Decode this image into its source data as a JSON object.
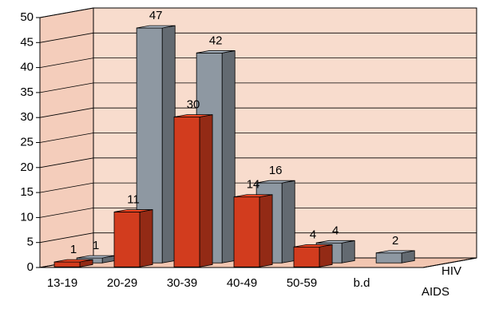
{
  "chart_data": {
    "type": "bar3d",
    "categories": [
      "13-19",
      "20-29",
      "30-39",
      "40-49",
      "50-59",
      "b.d"
    ],
    "series": [
      {
        "name": "AIDS",
        "color": "#d23c1e",
        "values": [
          1,
          11,
          30,
          14,
          4,
          null
        ]
      },
      {
        "name": "HIV",
        "color": "#8e98a2",
        "values": [
          1,
          47,
          42,
          16,
          4,
          2
        ]
      }
    ],
    "ylim": [
      0,
      50
    ],
    "yticks": [
      0,
      5,
      10,
      15,
      20,
      25,
      30,
      35,
      40,
      45,
      50
    ],
    "grid": true
  }
}
